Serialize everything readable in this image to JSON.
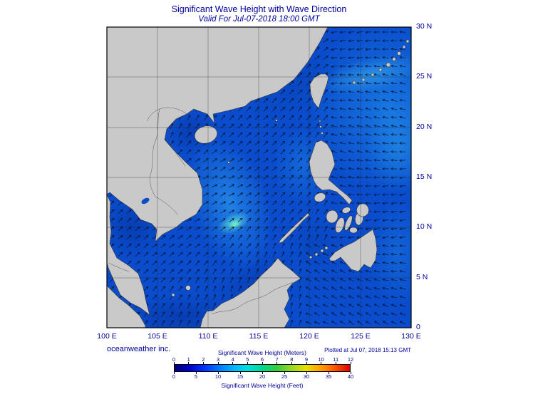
{
  "header": {
    "title": "Significant Wave Height with Wave Direction",
    "subtitle": "Valid For Jul-07-2018 18:00 GMT"
  },
  "map": {
    "lat_labels": [
      "30 N",
      "25 N",
      "20 N",
      "15 N",
      "10 N",
      "5 N",
      "0"
    ],
    "lon_labels": [
      "100 E",
      "105 E",
      "110 E",
      "115 E",
      "120 E",
      "125 E",
      "130 E"
    ]
  },
  "colorbar": {
    "title_meters": "Significant Wave Height (Meters)",
    "title_feet": "Significant Wave Height (Feet)",
    "meter_ticks": [
      "0",
      "1",
      "2",
      "3",
      "4",
      "5",
      "6",
      "7",
      "8",
      "9",
      "10",
      "11",
      "12"
    ],
    "feet_ticks": [
      "0",
      "5",
      "10",
      "15",
      "20",
      "25",
      "30",
      "35",
      "40"
    ],
    "gradient_stops": [
      "#000080",
      "#0000c8",
      "#0033ff",
      "#0075ff",
      "#00b4ff",
      "#00e0dc",
      "#00d890",
      "#35cc3c",
      "#96d822",
      "#e6e000",
      "#ffa000",
      "#ff5200",
      "#dd0000"
    ]
  },
  "footer": {
    "credit": "oceanweather inc.",
    "plotted": "Plotted at Jul 07, 2018 15:13 GMT"
  },
  "colors": {
    "text_navy": "#000099",
    "land": "#c9c9c9",
    "ocean": "#0a4ccc",
    "arrow": "#001433",
    "grid": "#222222"
  },
  "chart_data": {
    "type": "heatmap",
    "title": "Significant Wave Height with Wave Direction",
    "valid_time": "Jul-07-2018 18:00 GMT",
    "region": {
      "lon_range_deg_e": [
        100,
        130
      ],
      "lat_range_deg_n": [
        0,
        30
      ]
    },
    "colorbar_meters": [
      0,
      1,
      2,
      3,
      4,
      5,
      6,
      7,
      8,
      9,
      10,
      11,
      12
    ],
    "colorbar_feet": [
      0,
      5,
      10,
      15,
      20,
      25,
      30,
      35,
      40
    ]
  }
}
